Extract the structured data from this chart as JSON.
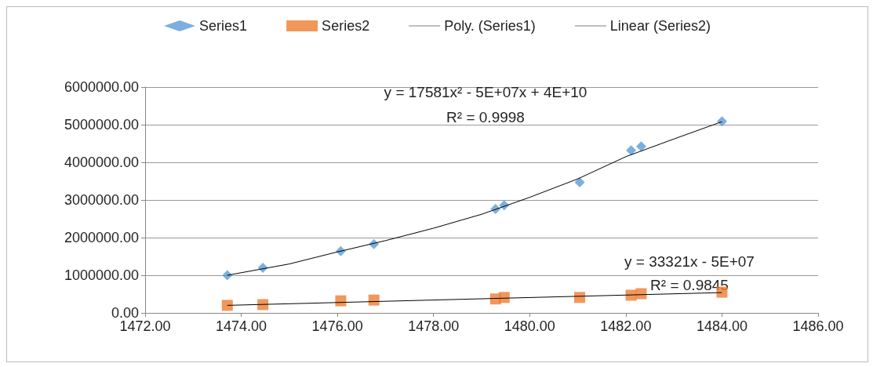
{
  "chart_data": {
    "type": "scatter",
    "legend": "top",
    "grid": "y",
    "xlim": [
      1472,
      1486
    ],
    "xticks": [
      {
        "value": 1472,
        "label": "1472.00"
      },
      {
        "value": 1474,
        "label": "1474.00"
      },
      {
        "value": 1476,
        "label": "1476.00"
      },
      {
        "value": 1478,
        "label": "1478.00"
      },
      {
        "value": 1480,
        "label": "1480.00"
      },
      {
        "value": 1482,
        "label": "1482.00"
      },
      {
        "value": 1484,
        "label": "1484.00"
      },
      {
        "value": 1486,
        "label": "1486.00"
      }
    ],
    "ylim": [
      0,
      6000000
    ],
    "yticks": [
      {
        "value": 0,
        "label": "0.00"
      },
      {
        "value": 1000000,
        "label": "1000000.00"
      },
      {
        "value": 2000000,
        "label": "2000000.00"
      },
      {
        "value": 3000000,
        "label": "3000000.00"
      },
      {
        "value": 4000000,
        "label": "4000000.00"
      },
      {
        "value": 5000000,
        "label": "5000000.00"
      },
      {
        "value": 6000000,
        "label": "6000000.00"
      }
    ],
    "x": [
      1473.71,
      1474.45,
      1476.07,
      1476.76,
      1479.29,
      1479.47,
      1481.04,
      1482.11,
      1482.32,
      1484.0
    ],
    "series": [
      {
        "name": "Series1",
        "marker": "diamond",
        "color": "#5b9bd5",
        "values": [
          1000000,
          1200000,
          1640000,
          1830000,
          2760000,
          2860000,
          3470000,
          4320000,
          4420000,
          5090000
        ]
      },
      {
        "name": "Series2",
        "marker": "square",
        "color": "#ed7d31",
        "values": [
          200000,
          220000,
          320000,
          340000,
          370000,
          410000,
          410000,
          470000,
          510000,
          550000
        ]
      },
      {
        "name": "Poly. (Series1)",
        "type": "line",
        "marker": "none",
        "line_style": "solid",
        "color": "#000000",
        "x": [
          1473.71,
          1475,
          1476,
          1477,
          1478,
          1479,
          1480,
          1481,
          1482,
          1483,
          1484
        ],
        "values": [
          1000000,
          1300000,
          1620000,
          1920000,
          2250000,
          2620000,
          3070000,
          3560000,
          4150000,
          4620000,
          5080000
        ]
      },
      {
        "name": "Linear (Series2)",
        "type": "line",
        "marker": "none",
        "line_style": "solid",
        "color": "#000000",
        "x": [
          1473.71,
          1484
        ],
        "values": [
          200000,
          540000
        ]
      }
    ],
    "annotations": [
      "y = 17581x² - 5E+07x + 4E+10",
      "R² = 0.9998",
      "y = 33321x - 5E+07",
      "R² = 0.9845"
    ]
  }
}
